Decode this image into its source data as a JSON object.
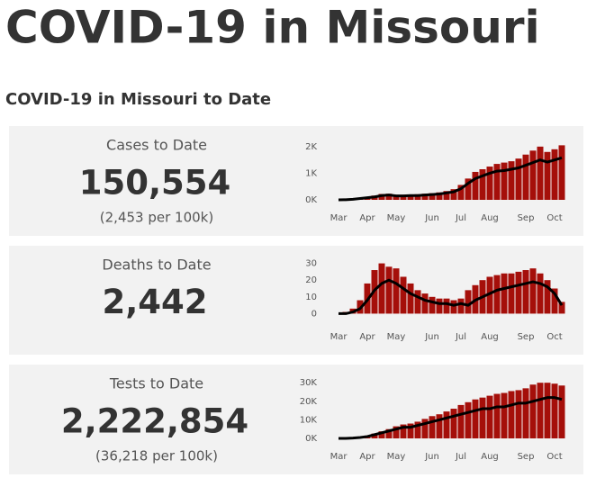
{
  "title": "COVID-19 in Missouri",
  "subtitle": "COVID-19 in Missouri to Date",
  "chart_data": [
    {
      "type": "bar",
      "title": "Cases to Date",
      "annotations": [
        "150,554",
        "(2,453 per 100k)"
      ],
      "categories": [
        "Mar",
        null,
        null,
        null,
        "Apr",
        null,
        null,
        null,
        "May",
        null,
        null,
        null,
        null,
        "Jun",
        null,
        null,
        null,
        "Jul",
        null,
        null,
        null,
        "Aug",
        null,
        null,
        null,
        null,
        "Sep",
        null,
        null,
        null,
        "Oct",
        null
      ],
      "series": [
        {
          "type": "bar",
          "color": "#a50f0a",
          "values": [
            0,
            10,
            30,
            70,
            110,
            160,
            220,
            230,
            190,
            190,
            200,
            210,
            230,
            250,
            280,
            330,
            400,
            560,
            800,
            1050,
            1150,
            1250,
            1350,
            1400,
            1450,
            1550,
            1700,
            1850,
            2000,
            1800,
            1900,
            2050
          ]
        },
        {
          "type": "line",
          "color": "#000000",
          "values": [
            0,
            5,
            20,
            50,
            80,
            110,
            160,
            180,
            150,
            150,
            160,
            160,
            180,
            200,
            220,
            260,
            300,
            420,
            620,
            800,
            900,
            1000,
            1080,
            1100,
            1150,
            1200,
            1300,
            1400,
            1500,
            1420,
            1500,
            1580
          ]
        }
      ],
      "ylim": [
        0,
        2300
      ],
      "yticks": [
        {
          "value": 0,
          "label": "0K"
        },
        {
          "value": 1000,
          "label": "1K"
        },
        {
          "value": 2000,
          "label": "2K"
        }
      ]
    },
    {
      "type": "bar",
      "title": "Deaths to Date",
      "annotations": [
        "2,442"
      ],
      "categories": [
        "Mar",
        null,
        null,
        null,
        "Apr",
        null,
        null,
        null,
        "May",
        null,
        null,
        null,
        null,
        "Jun",
        null,
        null,
        null,
        "Jul",
        null,
        null,
        null,
        "Aug",
        null,
        null,
        null,
        null,
        "Sep",
        null,
        null,
        null,
        "Oct",
        null
      ],
      "series": [
        {
          "type": "bar",
          "color": "#a50f0a",
          "values": [
            0,
            1,
            3,
            8,
            18,
            26,
            30,
            28,
            27,
            22,
            18,
            14,
            12,
            10,
            9,
            9,
            8,
            9,
            14,
            17,
            20,
            22,
            23,
            24,
            24,
            25,
            26,
            27,
            24,
            20,
            15,
            7
          ]
        },
        {
          "type": "line",
          "color": "#000000",
          "values": [
            0,
            0,
            1,
            3,
            8,
            14,
            18,
            20,
            18,
            15,
            12,
            10,
            8,
            7,
            6,
            6,
            5,
            6,
            5,
            8,
            10,
            12,
            14,
            15,
            16,
            17,
            18,
            19,
            18,
            16,
            12,
            5
          ]
        }
      ],
      "ylim": [
        -3,
        33
      ],
      "yticks": [
        0,
        10,
        20,
        30
      ]
    },
    {
      "type": "bar",
      "title": "Tests to Date",
      "annotations": [
        "2,222,854",
        "(36,218 per 100k)"
      ],
      "categories": [
        "Mar",
        null,
        null,
        null,
        "Apr",
        null,
        null,
        null,
        "May",
        null,
        null,
        null,
        null,
        "Jun",
        null,
        null,
        null,
        "Jul",
        null,
        null,
        null,
        "Aug",
        null,
        null,
        null,
        null,
        "Sep",
        null,
        null,
        null,
        "Oct",
        null
      ],
      "series": [
        {
          "type": "bar",
          "color": "#a50f0a",
          "values": [
            0,
            100,
            400,
            900,
            1500,
            2600,
            3800,
            5000,
            6500,
            7500,
            8000,
            9000,
            10500,
            12000,
            13000,
            14500,
            16000,
            18000,
            19500,
            21000,
            22000,
            23000,
            24000,
            24500,
            25500,
            26000,
            27000,
            29000,
            30000,
            30000,
            29500,
            28500
          ]
        },
        {
          "type": "line",
          "color": "#000000",
          "values": [
            0,
            0,
            200,
            500,
            1000,
            2000,
            3000,
            4000,
            5000,
            6000,
            6000,
            7000,
            8000,
            9000,
            10000,
            11000,
            12000,
            13000,
            14000,
            15000,
            16000,
            16000,
            17000,
            17000,
            18000,
            19000,
            19000,
            20000,
            21000,
            22000,
            22000,
            21000
          ]
        }
      ],
      "ylim": [
        0,
        33000
      ],
      "yticks": [
        {
          "value": 0,
          "label": "0K"
        },
        {
          "value": 10000,
          "label": "10K"
        },
        {
          "value": 20000,
          "label": "20K"
        },
        {
          "value": 30000,
          "label": "30K"
        }
      ]
    }
  ]
}
